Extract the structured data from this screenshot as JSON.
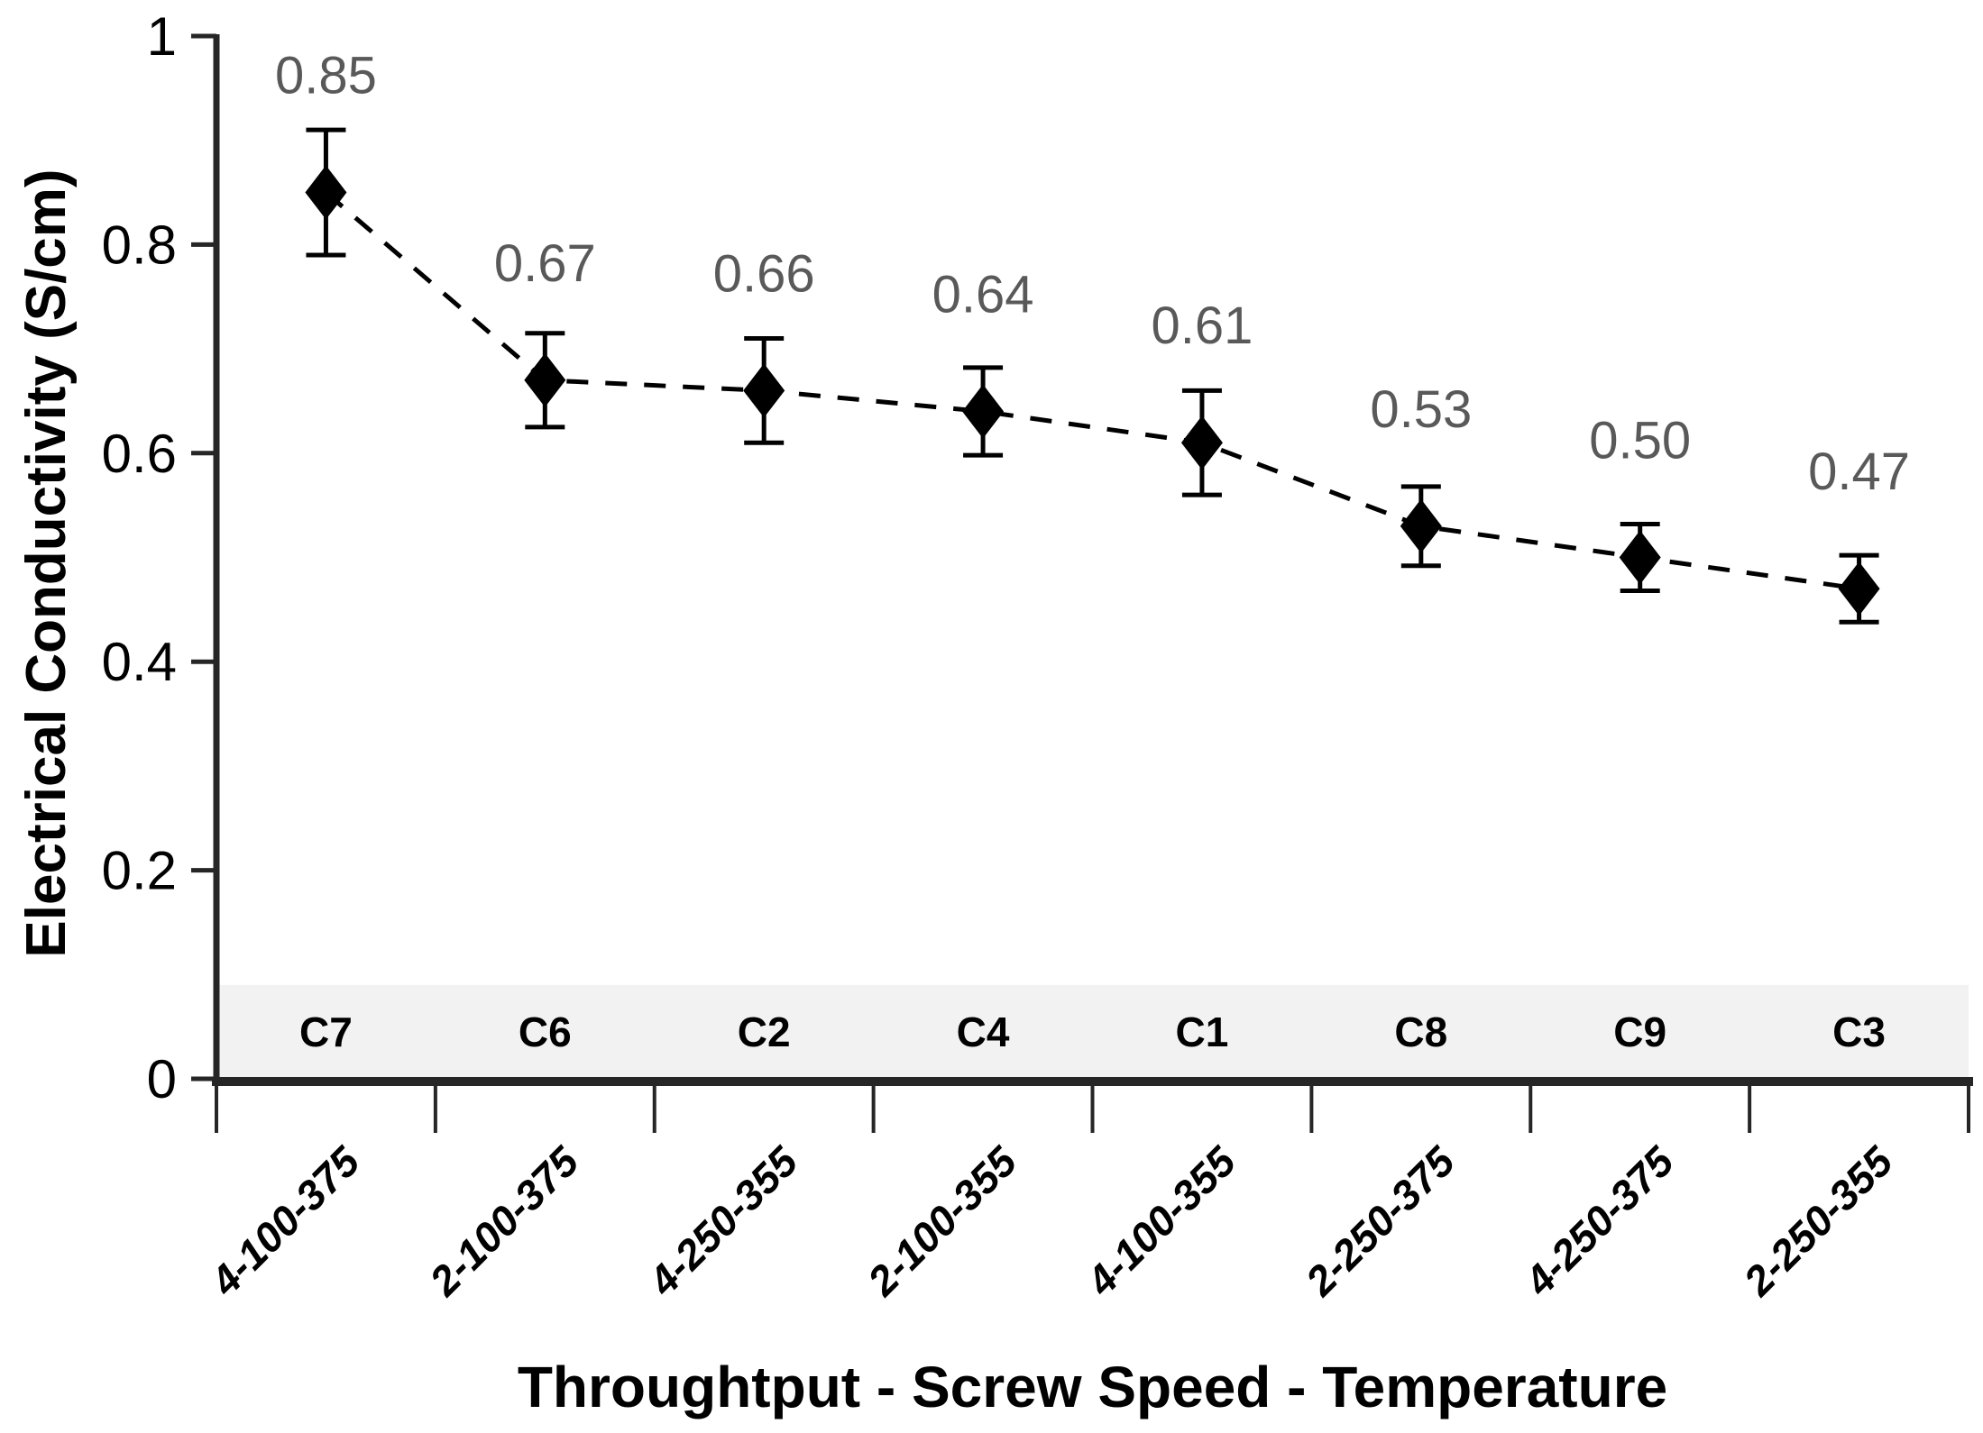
{
  "chart_data": {
    "type": "line",
    "title": "",
    "xlabel": "Throughtput - Screw Speed - Temperature",
    "ylabel": "Electrical Conductivity (S/cm)",
    "ylim": [
      0,
      1
    ],
    "y_tick_values": [
      0,
      0.2,
      0.4,
      0.6,
      0.8,
      1
    ],
    "y_tick_labels": [
      "0",
      "0.2",
      "0.4",
      "0.6",
      "0.8",
      "1"
    ],
    "categories": [
      "4-100-375",
      "2-100-375",
      "4-250-355",
      "2-100-355",
      "4-100-355",
      "2-250-375",
      "4-250-375",
      "2-250-355"
    ],
    "sample_ids": [
      "C7",
      "C6",
      "C2",
      "C4",
      "C1",
      "C8",
      "C9",
      "C3"
    ],
    "series": [
      {
        "name": "Electrical Conductivity",
        "values": [
          0.85,
          0.67,
          0.66,
          0.64,
          0.61,
          0.53,
          0.5,
          0.47
        ],
        "value_labels": [
          "0.85",
          "0.67",
          "0.66",
          "0.64",
          "0.61",
          "0.53",
          "0.50",
          "0.47"
        ],
        "error_bars": [
          0.06,
          0.045,
          0.05,
          0.042,
          0.05,
          0.038,
          0.032,
          0.032
        ]
      }
    ],
    "line_style": "dashed",
    "marker": "diamond",
    "grid": false,
    "legend": "none",
    "band": {
      "y_min": 0,
      "y_max": 0.09,
      "color": "#f2f2f2"
    },
    "colors": {
      "marker": "#000000",
      "line": "#000000",
      "data_label": "#595959",
      "axis": "#262626",
      "text": "#000000"
    }
  }
}
